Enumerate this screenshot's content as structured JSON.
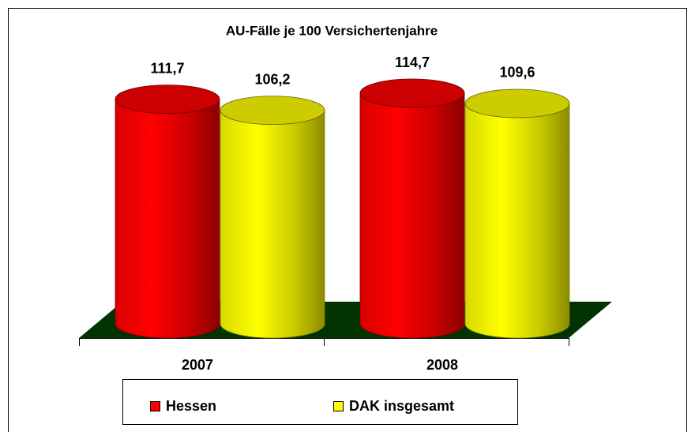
{
  "chart_data": {
    "type": "bar",
    "title": "AU-Fälle je 100 Versichertenjahre",
    "categories": [
      "2007",
      "2008"
    ],
    "series": [
      {
        "name": "Hessen",
        "color": "#ff0000",
        "values": [
          111.7,
          114.7
        ],
        "value_labels": [
          "111,7",
          "114,7"
        ]
      },
      {
        "name": "DAK insgesamt",
        "color": "#ffff00",
        "values": [
          106.2,
          109.6
        ],
        "value_labels": [
          "106,2",
          "109,6"
        ]
      }
    ],
    "floor_color": "#003300"
  }
}
